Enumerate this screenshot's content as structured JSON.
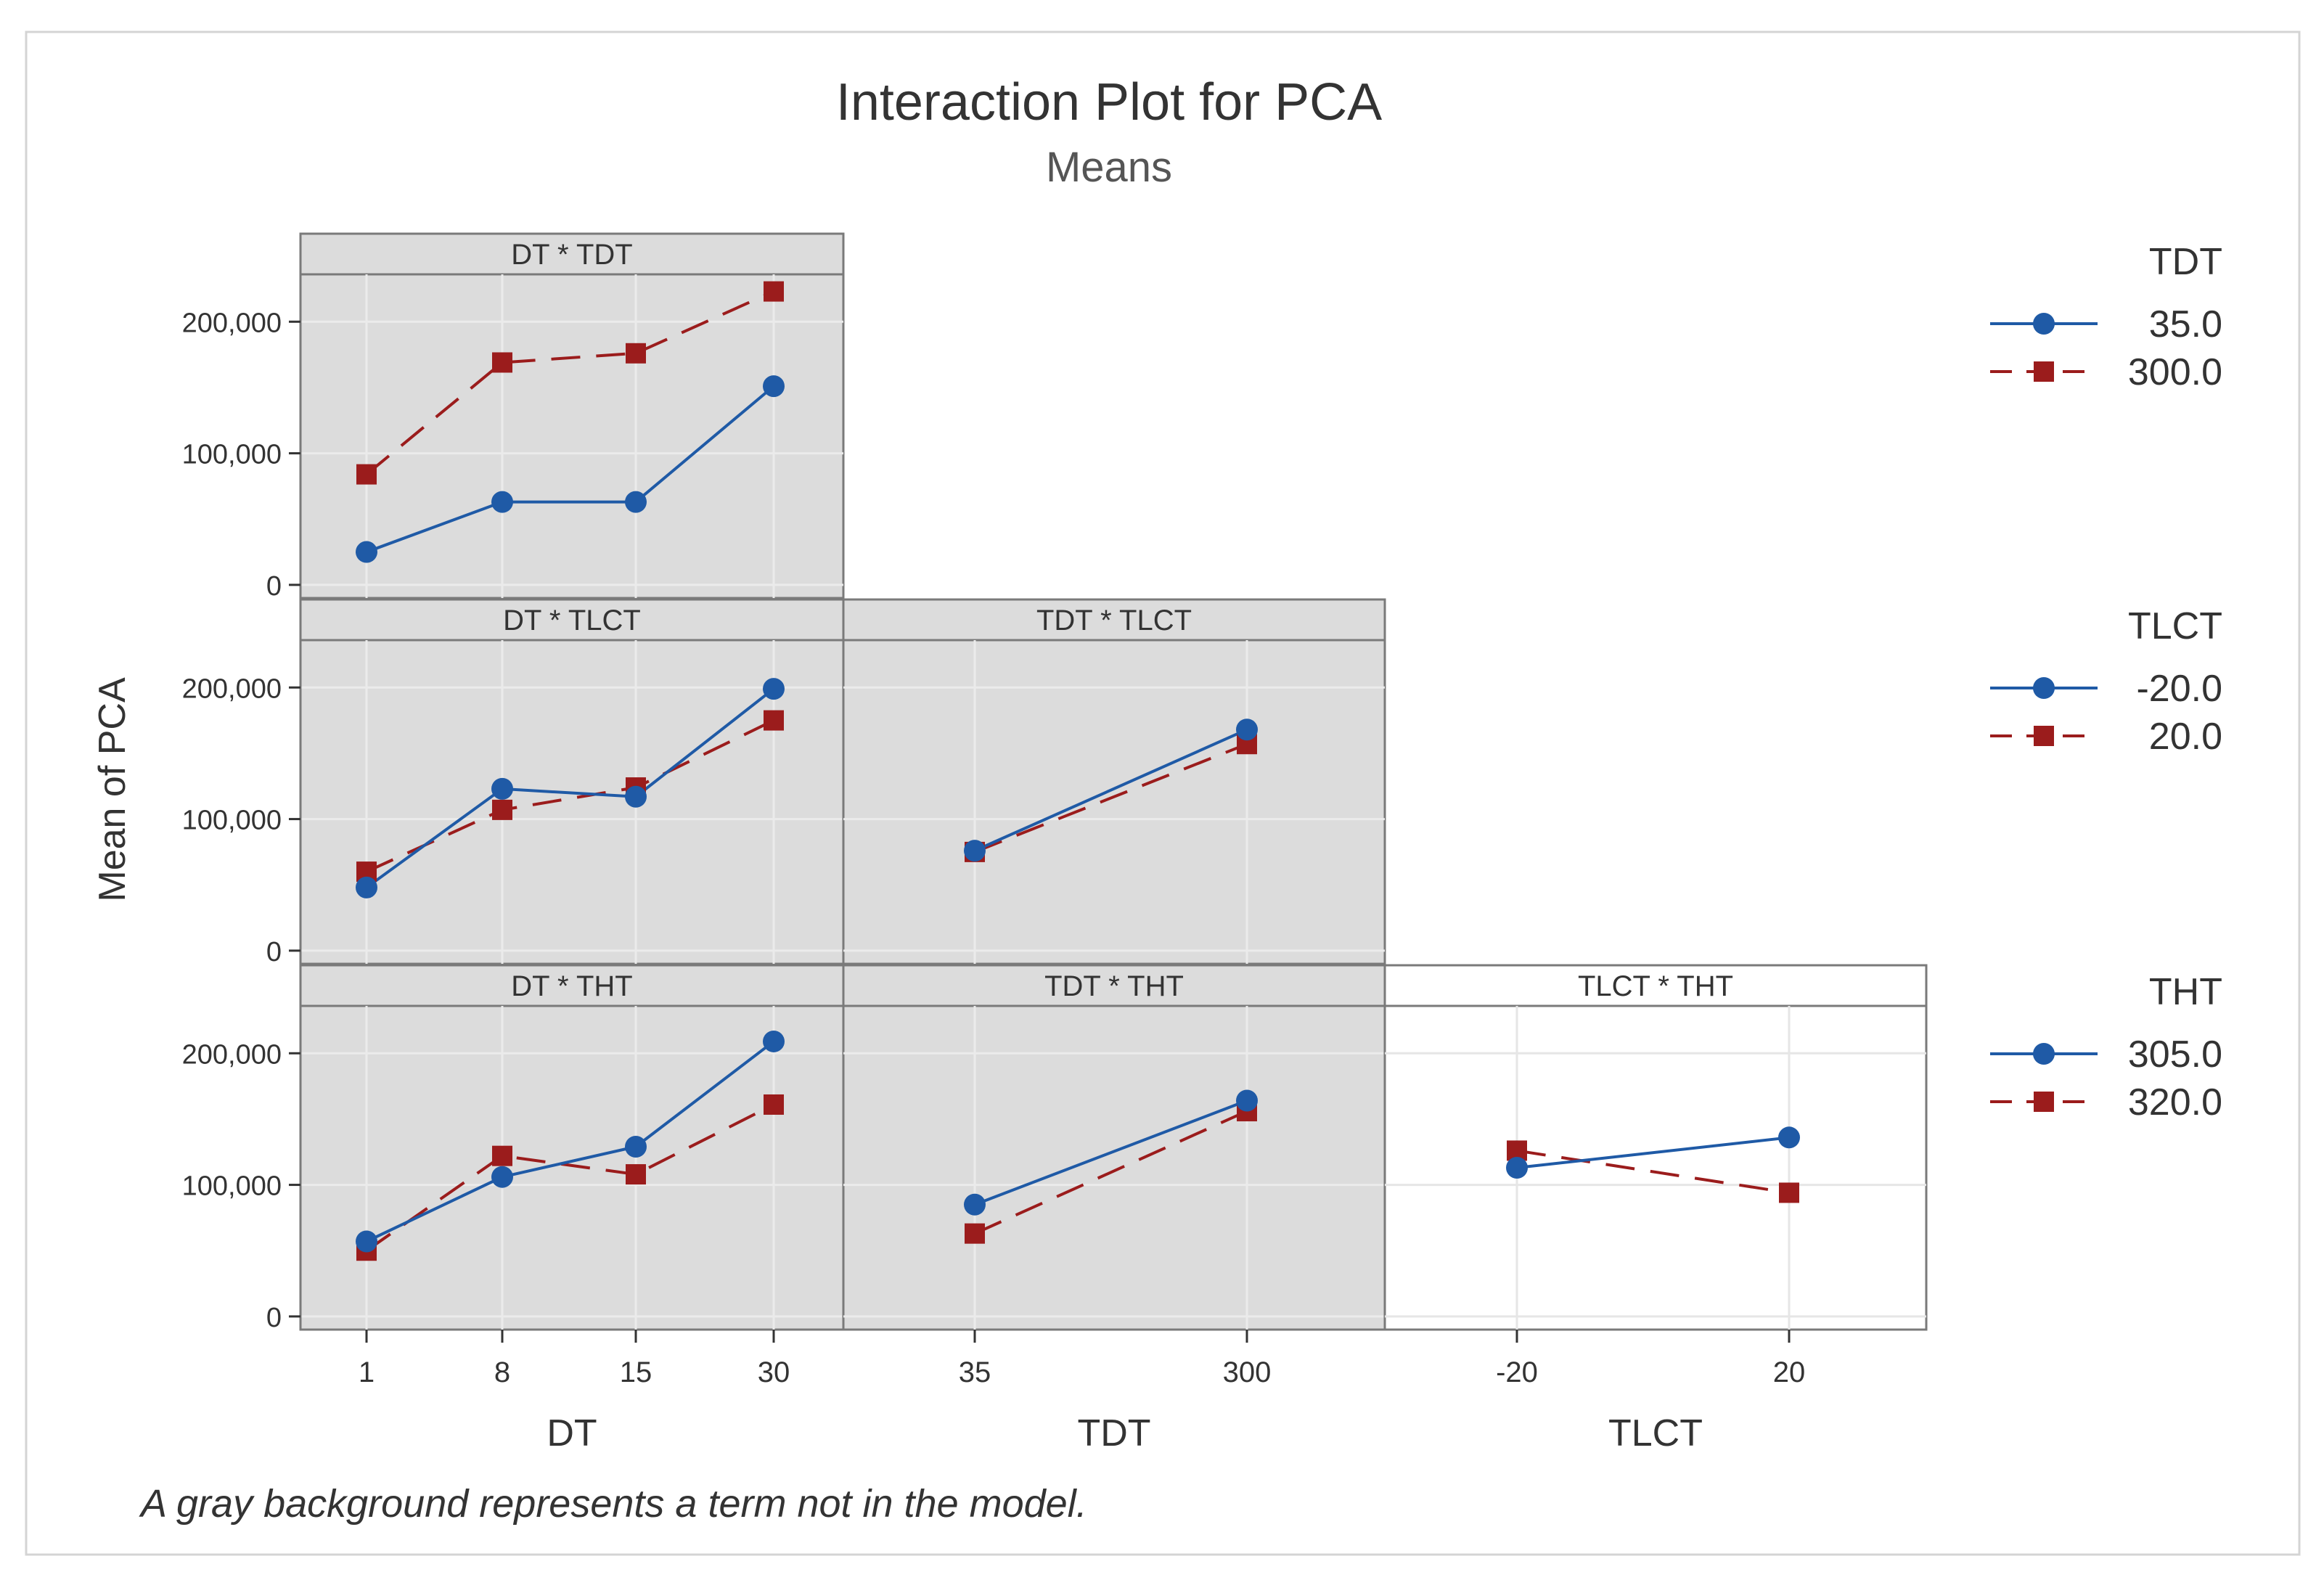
{
  "chart_data": {
    "type": "line",
    "title": "Interaction Plot for PCA",
    "subtitle": "Means",
    "ylabel": "Mean of PCA",
    "footnote": "A gray background represents a term not in the model.",
    "yticks": [
      0,
      100000,
      200000
    ],
    "ytick_labels": [
      "0",
      "100,000",
      "200,000"
    ],
    "ylim": [
      -10000,
      236000
    ],
    "colors": {
      "series1": "#1f5aa6",
      "series2": "#9b1c1c",
      "gray_panel": "#dcdcdc"
    },
    "columns": [
      {
        "label": "DT",
        "ticks": [
          "1",
          "8",
          "15",
          "30"
        ],
        "tick_values": [
          1,
          8,
          15,
          30
        ]
      },
      {
        "label": "TDT",
        "ticks": [
          "35",
          "300"
        ],
        "tick_values": [
          35,
          300
        ]
      },
      {
        "label": "TLCT",
        "ticks": [
          "-20",
          "20"
        ],
        "tick_values": [
          -20,
          20
        ]
      }
    ],
    "legends": [
      {
        "title": "TDT",
        "items": [
          "35.0",
          "300.0"
        ]
      },
      {
        "title": "TLCT",
        "items": [
          "-20.0",
          "20.0"
        ]
      },
      {
        "title": "THT",
        "items": [
          "305.0",
          "320.0"
        ]
      }
    ],
    "panels": [
      {
        "title": "DT * TDT",
        "row": 0,
        "col": 0,
        "gray": true,
        "series": [
          {
            "name": "35.0",
            "values": [
              25000,
              63000,
              63000,
              151000
            ]
          },
          {
            "name": "300.0",
            "values": [
              84000,
              169000,
              176000,
              223000
            ]
          }
        ]
      },
      {
        "title": "DT * TLCT",
        "row": 1,
        "col": 0,
        "gray": true,
        "series": [
          {
            "name": "-20.0",
            "values": [
              48000,
              123000,
              117000,
              199000
            ]
          },
          {
            "name": "20.0",
            "values": [
              60000,
              107000,
              124000,
              175000
            ]
          }
        ]
      },
      {
        "title": "TDT * TLCT",
        "row": 1,
        "col": 1,
        "gray": true,
        "series": [
          {
            "name": "-20.0",
            "values": [
              76000,
              168000
            ]
          },
          {
            "name": "20.0",
            "values": [
              75000,
              157000
            ]
          }
        ]
      },
      {
        "title": "DT * THT",
        "row": 2,
        "col": 0,
        "gray": true,
        "series": [
          {
            "name": "305.0",
            "values": [
              57000,
              106000,
              129000,
              209000
            ]
          },
          {
            "name": "320.0",
            "values": [
              50000,
              122000,
              108000,
              161000
            ]
          }
        ]
      },
      {
        "title": "TDT * THT",
        "row": 2,
        "col": 1,
        "gray": true,
        "series": [
          {
            "name": "305.0",
            "values": [
              85000,
              164000
            ]
          },
          {
            "name": "320.0",
            "values": [
              63000,
              156000
            ]
          }
        ]
      },
      {
        "title": "TLCT * THT",
        "row": 2,
        "col": 2,
        "gray": false,
        "series": [
          {
            "name": "305.0",
            "values": [
              113000,
              136000
            ]
          },
          {
            "name": "320.0",
            "values": [
              126000,
              94000
            ]
          }
        ]
      }
    ]
  }
}
